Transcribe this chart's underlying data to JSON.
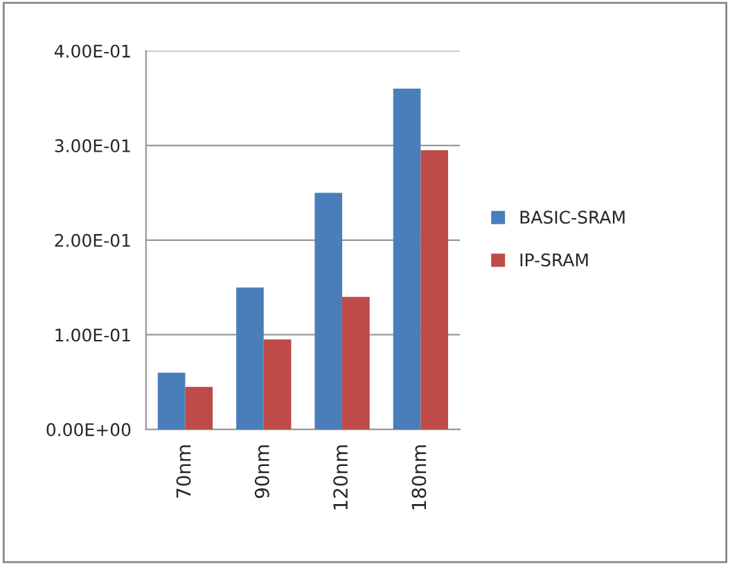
{
  "chart_data": {
    "type": "bar",
    "categories": [
      "70nm",
      "90nm",
      "120nm",
      "180nm"
    ],
    "series": [
      {
        "name": "BASIC-SRAM",
        "color": "#4a7ebb",
        "values": [
          0.06,
          0.15,
          0.25,
          0.36
        ]
      },
      {
        "name": "IP-SRAM",
        "color": "#be4b48",
        "values": [
          0.045,
          0.095,
          0.14,
          0.295
        ]
      }
    ],
    "ylim": [
      0,
      0.4
    ],
    "yticks": [
      {
        "value": 0,
        "label": "0.00E+00"
      },
      {
        "value": 0.1,
        "label": "1.00E-01"
      },
      {
        "value": 0.2,
        "label": "2.00E-01"
      },
      {
        "value": 0.3,
        "label": "3.00E-01"
      },
      {
        "value": 0.4,
        "label": "4.00E-01"
      }
    ],
    "grid": "y",
    "legend": "right"
  }
}
